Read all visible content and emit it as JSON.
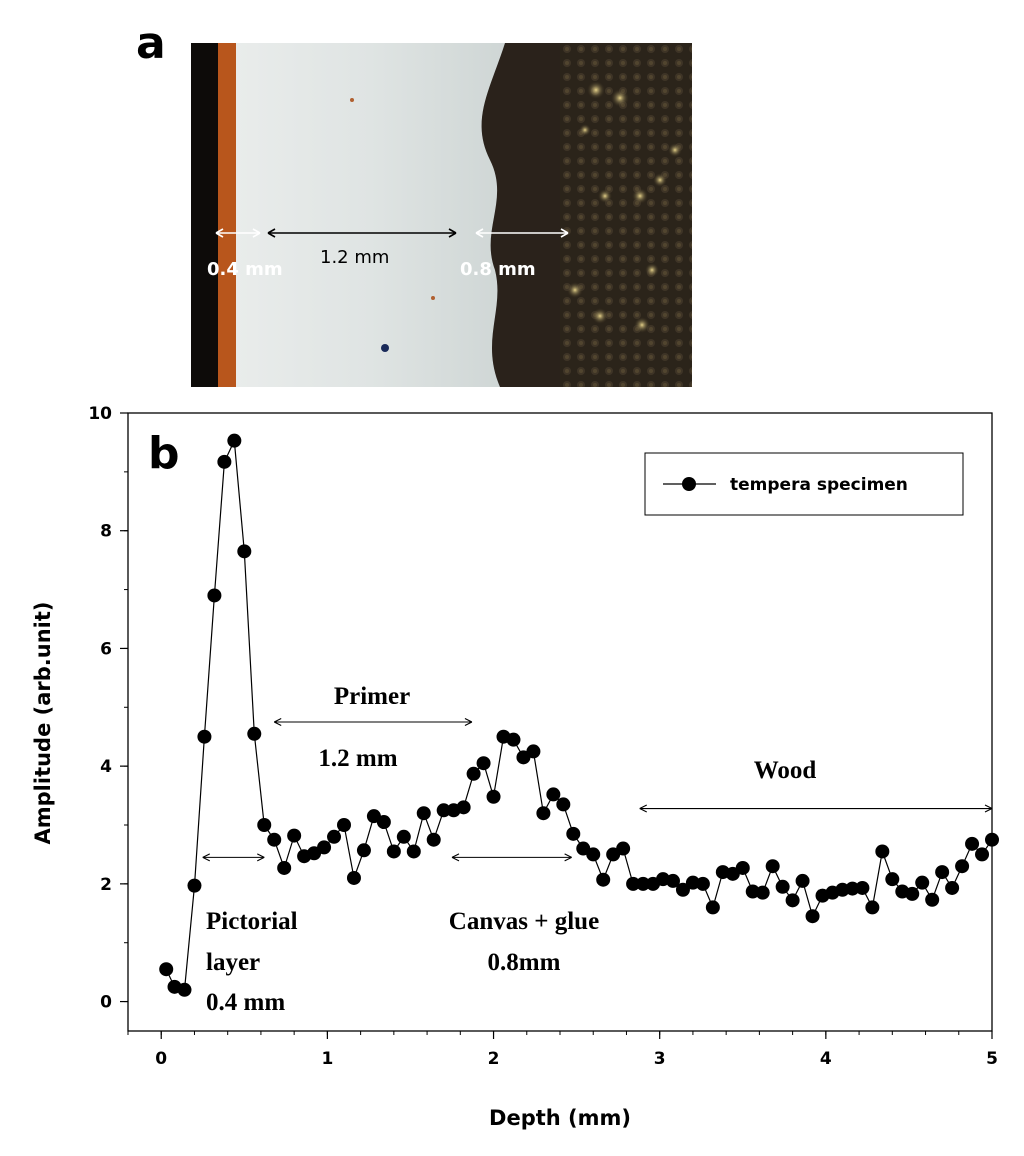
{
  "panel_a": {
    "label": "a",
    "measurements": [
      "0.4 mm",
      "1.2 mm",
      "0.8 mm"
    ]
  },
  "panel_b": {
    "label": "b"
  },
  "chart_data": {
    "type": "line",
    "xlabel": "Depth (mm)",
    "ylabel": "Amplitude (arb.unit)",
    "xlim": [
      -0.2,
      5
    ],
    "ylim": [
      -0.5,
      10
    ],
    "xticks": [
      "0",
      "1",
      "2",
      "3",
      "4",
      "5"
    ],
    "yticks": [
      "0",
      "2",
      "4",
      "6",
      "8",
      "10"
    ],
    "grid": false,
    "legend_position": "top-right",
    "series": [
      {
        "name": "tempera specimen",
        "color": "#000000",
        "marker": "circle",
        "x": [
          0.03,
          0.08,
          0.14,
          0.2,
          0.26,
          0.32,
          0.38,
          0.44,
          0.5,
          0.56,
          0.62,
          0.68,
          0.74,
          0.8,
          0.86,
          0.92,
          0.98,
          1.04,
          1.1,
          1.16,
          1.22,
          1.28,
          1.34,
          1.4,
          1.46,
          1.52,
          1.58,
          1.64,
          1.7,
          1.76,
          1.82,
          1.88,
          1.94,
          2.0,
          2.06,
          2.12,
          2.18,
          2.24,
          2.3,
          2.36,
          2.42,
          2.48,
          2.54,
          2.6,
          2.66,
          2.72,
          2.78,
          2.84,
          2.9,
          2.96,
          3.02,
          3.08,
          3.14,
          3.2,
          3.26,
          3.32,
          3.38,
          3.44,
          3.5,
          3.56,
          3.62,
          3.68,
          3.74,
          3.8,
          3.86,
          3.92,
          3.98,
          4.04,
          4.1,
          4.16,
          4.22,
          4.28,
          4.34,
          4.4,
          4.46,
          4.52,
          4.58,
          4.64,
          4.7,
          4.76,
          4.82,
          4.88,
          4.94,
          5.0
        ],
        "y": [
          0.55,
          0.25,
          0.2,
          1.97,
          4.5,
          6.9,
          9.17,
          9.53,
          7.65,
          4.55,
          3.0,
          2.75,
          2.27,
          2.82,
          2.47,
          2.52,
          2.62,
          2.8,
          3.0,
          2.1,
          2.57,
          3.15,
          3.05,
          2.55,
          2.8,
          2.55,
          3.2,
          2.75,
          3.25,
          3.25,
          3.3,
          3.87,
          4.05,
          3.48,
          4.5,
          4.45,
          4.15,
          4.25,
          3.2,
          3.52,
          3.35,
          2.85,
          2.6,
          2.5,
          2.07,
          2.5,
          2.6,
          2.0,
          2.0,
          2.0,
          2.08,
          2.05,
          1.9,
          2.02,
          2.0,
          1.6,
          2.2,
          2.17,
          2.27,
          1.87,
          1.85,
          2.3,
          1.95,
          1.72,
          2.05,
          1.45,
          1.8,
          1.85,
          1.9,
          1.92,
          1.93,
          1.6,
          2.55,
          2.08,
          1.87,
          1.83,
          2.02,
          1.73,
          2.2,
          1.93,
          2.3,
          2.68,
          2.5,
          2.75
        ]
      }
    ],
    "annotations": {
      "primer": {
        "line1": "Primer",
        "line2": "1.2 mm",
        "range": [
          0.68,
          1.87
        ],
        "arrow_y": 4.75
      },
      "wood": {
        "line1": "Wood",
        "range": [
          2.88,
          5.0
        ],
        "arrow_y": 3.28
      },
      "pictorial": {
        "line1": "Pictorial",
        "line2": "layer",
        "line3": "0.4 mm",
        "range": [
          0.25,
          0.62
        ],
        "arrow_y": 2.45
      },
      "canvas": {
        "line1": "Canvas + glue",
        "line2": "0.8mm",
        "range": [
          1.75,
          2.47
        ],
        "arrow_y": 2.45
      }
    }
  }
}
